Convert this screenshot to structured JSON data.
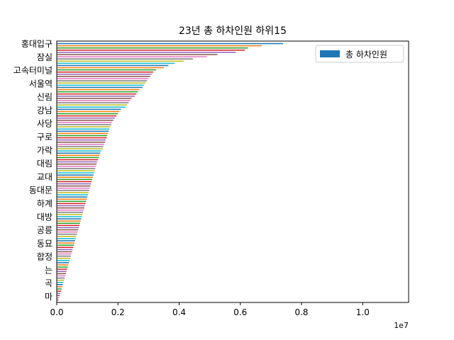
{
  "chart_data": {
    "type": "bar",
    "orientation": "horizontal",
    "title": "23년 총 하차인원 하위15",
    "xlabel": "",
    "ylabel": "",
    "x_offset_label": "1e7",
    "xlim": [
      0,
      11500000
    ],
    "xticks": [
      0,
      2000000,
      4000000,
      6000000,
      8000000,
      10000000
    ],
    "xtick_labels": [
      "0.0",
      "0.2",
      "0.4",
      "0.6",
      "0.8",
      "1.0"
    ],
    "legend": {
      "position": "top-right",
      "entries": [
        "총 하차인원"
      ]
    },
    "grid": false,
    "palette": [
      "#1f77b4",
      "#ff7f0e",
      "#2ca02c",
      "#d62728",
      "#9467bd",
      "#8c564b",
      "#e377c2",
      "#7f7f7f",
      "#bcbd22",
      "#17becf"
    ],
    "series": [
      {
        "name": "총 하차인원",
        "values": [
          7400000,
          6700000,
          6250000,
          6150000,
          5850000,
          5250000,
          4900000,
          4450000,
          4150000,
          3850000,
          3650000,
          3500000,
          3250000,
          3150000,
          3100000,
          3050000,
          3000000,
          2950000,
          2900000,
          2850000,
          2800000,
          2700000,
          2650000,
          2600000,
          2550000,
          2450000,
          2400000,
          2350000,
          2300000,
          2250000,
          2100000,
          2050000,
          2000000,
          1950000,
          1900000,
          1850000,
          1800000,
          1780000,
          1750000,
          1720000,
          1700000,
          1680000,
          1650000,
          1630000,
          1600000,
          1580000,
          1550000,
          1520000,
          1500000,
          1450000,
          1420000,
          1400000,
          1380000,
          1350000,
          1320000,
          1300000,
          1280000,
          1260000,
          1240000,
          1220000,
          1200000,
          1180000,
          1160000,
          1140000,
          1120000,
          1100000,
          1080000,
          1060000,
          1040000,
          1020000,
          1000000,
          980000,
          960000,
          940000,
          920000,
          900000,
          880000,
          860000,
          840000,
          820000,
          800000,
          780000,
          760000,
          740000,
          720000,
          700000,
          680000,
          660000,
          640000,
          620000,
          600000,
          580000,
          560000,
          540000,
          520000,
          500000,
          480000,
          460000,
          440000,
          420000,
          400000,
          380000,
          360000,
          340000,
          320000,
          300000,
          280000,
          260000,
          240000,
          220000,
          200000,
          180000,
          160000,
          140000,
          120000,
          100000,
          80000,
          60000
        ]
      }
    ],
    "category_label_fragments": [
      "홍대입구",
      "잠실",
      "고속터미널",
      "서울역",
      "신림",
      "강남",
      "사당",
      "구로",
      "가락",
      "대림",
      "교대",
      "동대문",
      "하계",
      "대방",
      "공릉",
      "동묘",
      "합정",
      "는",
      "곡",
      "마"
    ]
  }
}
